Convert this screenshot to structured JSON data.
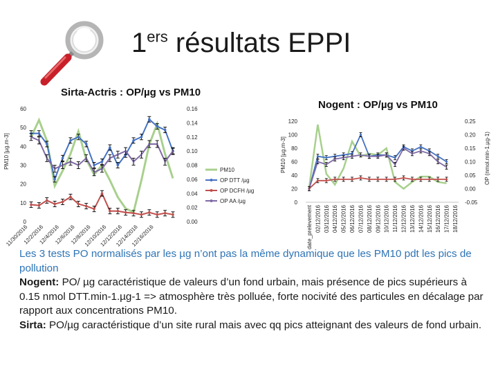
{
  "slide": {
    "title_main": "1",
    "title_sup": "ers",
    "title_rest": " résultats EPPI"
  },
  "colors": {
    "pm10": "#a8d08d",
    "op_dtt": "#4472c4",
    "op_dcfh": "#c0504d",
    "op_aa": "#7f6aa6",
    "text_accent": "#2e74b5"
  },
  "icons": [
    "magnifier-icon"
  ],
  "text": {
    "para1": "Les 3 tests PO normalisés par les µg n’ont pas la même dynamique que les PM10 pdt les pics de pollution",
    "nogent_label": "Nogent:",
    "nogent_text": " PO/ µg caractéristique de valeurs d’un fond urbain, mais présence de pics supérieurs à 0.15 nmol DTT.min-1.µg-1 => atmosphère très polluée, forte nocivité des particules en décalage par rapport aux concentrations PM10.",
    "sirta_label": "Sirta:",
    "sirta_text": " PO/µg caractéristique d’un site rural mais avec qq pics atteignant des valeurs de fond urbain."
  },
  "chart_data": [
    {
      "type": "line",
      "title": "Sirta-Actris : OP/µg vs PM10",
      "ylabel_left": "PM10 [µg.m-3]",
      "ylim_left": [
        0,
        60
      ],
      "yticks_left": [
        "0",
        "10",
        "20",
        "30",
        "40",
        "50",
        "60"
      ],
      "ylim_right": [
        0,
        0.16
      ],
      "yticks_right": [
        "0.00",
        "0.02",
        "0.04",
        "0.06",
        "0.08",
        "0.10",
        "0.12",
        "0.14",
        "0.16"
      ],
      "x_tick_labels": [
        "11/30/2016",
        "12/2/2016",
        "12/4/2016",
        "12/6/2016",
        "12/8/2016",
        "12/10/2016",
        "12/12/2016",
        "12/14/2016",
        "12/16/2016"
      ],
      "n_points": 19,
      "legend": [
        "PM10",
        "OP DTT /µg",
        "OP DCFH /µg",
        "OP AA /µg"
      ],
      "series": [
        {
          "name": "PM10",
          "axis": "left",
          "values": [
            45,
            54,
            43,
            19,
            27,
            36,
            48,
            33,
            25,
            30,
            22,
            13,
            7,
            5,
            22,
            41,
            52,
            36,
            23
          ]
        },
        {
          "name": "OP DTT /µg",
          "axis": "right",
          "values": [
            0.125,
            0.125,
            0.11,
            0.06,
            0.09,
            0.115,
            0.12,
            0.11,
            0.08,
            0.085,
            0.105,
            0.08,
            0.095,
            0.115,
            0.12,
            0.145,
            0.135,
            0.13,
            0.1
          ]
        },
        {
          "name": "OP DCFH /µg",
          "axis": "right",
          "values": [
            0.024,
            0.023,
            0.03,
            0.025,
            0.028,
            0.035,
            0.025,
            0.022,
            0.018,
            0.04,
            0.015,
            0.015,
            0.013,
            0.012,
            0.01,
            0.013,
            0.01,
            0.012,
            0.01
          ]
        },
        {
          "name": "OP AA /µg",
          "axis": "right",
          "values": [
            0.12,
            0.115,
            0.09,
            0.075,
            0.08,
            0.085,
            0.08,
            0.09,
            0.07,
            0.075,
            0.09,
            0.095,
            0.1,
            0.085,
            0.095,
            0.11,
            0.11,
            0.085,
            0.1
          ]
        }
      ]
    },
    {
      "type": "line",
      "title": "Nogent : OP/µg vs PM10",
      "ylabel_left": "PM10 [µg.m-3]",
      "ylabel_right": "OP (nmol.min-1.µg-1)",
      "ylim_left": [
        0,
        120
      ],
      "yticks_left": [
        "0",
        "20",
        "40",
        "60",
        "80",
        "100",
        "120"
      ],
      "ylim_right": [
        -0.05,
        0.25
      ],
      "yticks_right": [
        "-0.05",
        "0.00",
        "0.05",
        "0.10",
        "0.15",
        "0.20",
        "0.25"
      ],
      "x_tick_labels": [
        "date_prelevement",
        "02/12/2016",
        "03/12/2016",
        "04/12/2016",
        "05/12/2016",
        "06/12/2016",
        "07/12/2016",
        "08/12/2016",
        "09/12/2016",
        "10/12/2016",
        "11/12/2016",
        "12/12/2016",
        "13/12/2016",
        "14/12/2016",
        "15/12/2016",
        "16/12/2016",
        "17/12/2016",
        "18/12/2016"
      ],
      "categories": [
        "02/12/2016",
        "03/12/2016",
        "04/12/2016",
        "05/12/2016",
        "06/12/2016",
        "07/12/2016",
        "08/12/2016",
        "09/12/2016",
        "10/12/2016",
        "11/12/2016",
        "12/12/2016",
        "13/12/2016",
        "14/12/2016",
        "15/12/2016",
        "16/12/2016",
        "17/12/2016",
        "18/12/2016"
      ],
      "series": [
        {
          "name": "PM10",
          "axis": "left",
          "values": [
            22,
            115,
            42,
            26,
            50,
            90,
            68,
            72,
            70,
            80,
            30,
            20,
            30,
            38,
            38,
            30,
            28
          ]
        },
        {
          "name": "OP DTT /µg",
          "axis": "right",
          "values": [
            0.0,
            0.12,
            0.115,
            0.12,
            0.125,
            0.13,
            0.2,
            0.12,
            0.125,
            0.125,
            0.115,
            0.155,
            0.14,
            0.155,
            0.14,
            0.12,
            0.1
          ]
        },
        {
          "name": "OP DCFH /µg",
          "axis": "right",
          "values": [
            0.0,
            0.03,
            0.03,
            0.035,
            0.035,
            0.035,
            0.04,
            0.035,
            0.035,
            0.035,
            0.035,
            0.04,
            0.035,
            0.035,
            0.035,
            0.035,
            0.035
          ]
        },
        {
          "name": "OP AA /µg",
          "axis": "right",
          "values": [
            0.0,
            0.1,
            0.09,
            0.11,
            0.115,
            0.12,
            0.125,
            0.12,
            0.12,
            0.125,
            0.09,
            0.15,
            0.13,
            0.14,
            0.13,
            0.1,
            0.08
          ]
        }
      ]
    }
  ]
}
